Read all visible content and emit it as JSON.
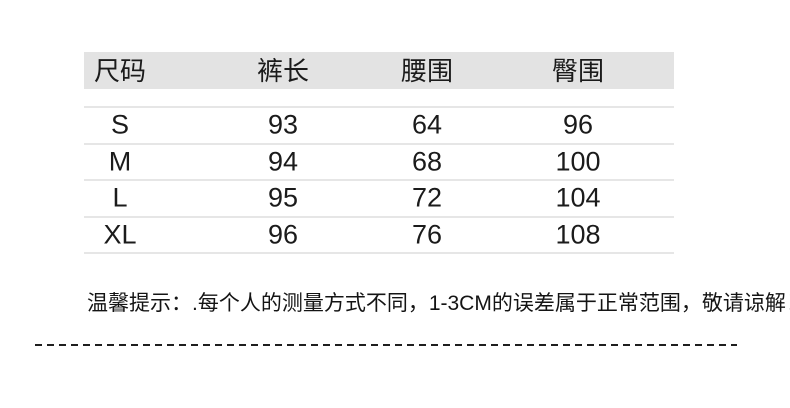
{
  "colors": {
    "background": "#ffffff",
    "header_bg": "#e3e3e3",
    "row_divider": "#e6e6e6",
    "text": "#1b1b1b",
    "dashed_line": "#1f1f1f"
  },
  "chart_data": {
    "type": "table",
    "columns": [
      "尺码",
      "裤长",
      "腰围",
      "臀围"
    ],
    "rows": [
      [
        "S",
        93,
        64,
        96
      ],
      [
        "M",
        94,
        68,
        100
      ],
      [
        "L",
        95,
        72,
        104
      ],
      [
        "XL",
        96,
        76,
        108
      ]
    ],
    "annotation": "温馨提示：.每个人的测量方式不同，1-3CM的误差属于正常范围，敬请谅解！",
    "layout_hints": {
      "header_background": "#e3e3e3",
      "grid": "horizontal row dividers only",
      "bottom_border": "dashed horizontal line"
    }
  }
}
